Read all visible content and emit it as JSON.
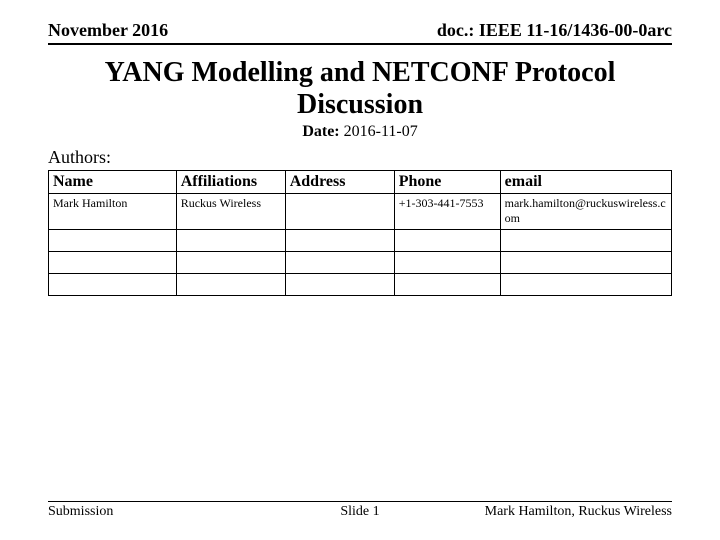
{
  "header": {
    "date_label": "November 2016",
    "doc_label": "doc.: IEEE 11-16/1436-00-0arc"
  },
  "title": "YANG Modelling and NETCONF Protocol Discussion",
  "date": {
    "label": "Date:",
    "value": "2016-11-07"
  },
  "authors_label": "Authors:",
  "table": {
    "columns": [
      "Name",
      "Affiliations",
      "Address",
      "Phone",
      "email"
    ],
    "column_widths_pct": [
      20.5,
      17.5,
      17.5,
      17,
      27.5
    ],
    "header_fontsize": 16,
    "cell_fontsize": 12,
    "small_fontsize": 11,
    "border_color": "#000000",
    "rows": [
      {
        "name": "Mark Hamilton",
        "affiliations": "Ruckus Wireless",
        "address": "",
        "phone": "+1-303-441-7553",
        "email": "mark.hamilton@ruckuswireless.com"
      },
      {
        "name": "",
        "affiliations": "",
        "address": "",
        "phone": "",
        "email": ""
      },
      {
        "name": "",
        "affiliations": "",
        "address": "",
        "phone": "",
        "email": ""
      },
      {
        "name": "",
        "affiliations": "",
        "address": "",
        "phone": "",
        "email": ""
      }
    ]
  },
  "footer": {
    "left": "Submission",
    "center": "Slide 1",
    "right": "Mark Hamilton, Ruckus Wireless"
  },
  "colors": {
    "background": "#ffffff",
    "text": "#000000",
    "rule": "#000000"
  },
  "typography": {
    "title_fontsize": 28,
    "header_fontsize": 18,
    "body_fontsize": 16,
    "footer_fontsize": 14,
    "font_family": "Times New Roman"
  }
}
